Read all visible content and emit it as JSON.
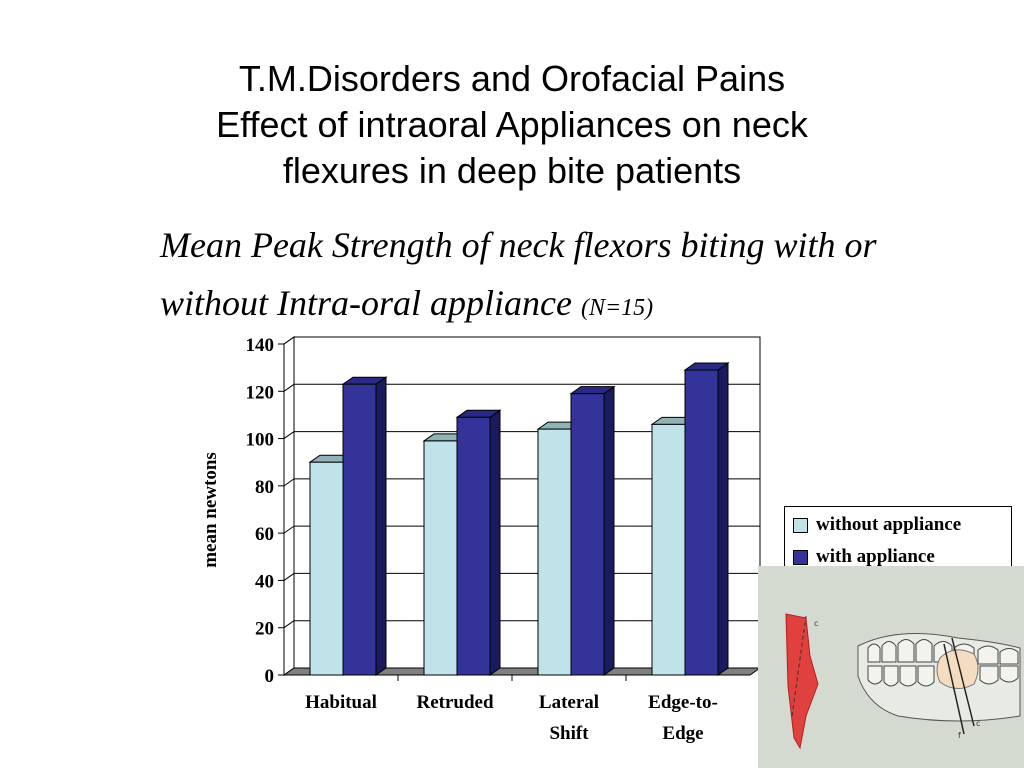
{
  "slide": {
    "title_lines": [
      "T.M.Disorders and Orofacial Pains",
      "Effect of intraoral Appliances on neck",
      "flexures in deep bite patients"
    ],
    "subtitle_main": "Mean Peak Strength of neck flexors biting with or without Intra-oral appliance",
    "subtitle_n": "(N=15)"
  },
  "chart_data": {
    "type": "bar",
    "categories": [
      "Habitual",
      "Retruded",
      "Lateral Shift",
      "Edge-to-Edge"
    ],
    "category_lines": [
      [
        "Habitual"
      ],
      [
        "Retruded"
      ],
      [
        "Lateral",
        "Shift"
      ],
      [
        "Edge-to-",
        "Edge"
      ]
    ],
    "series": [
      {
        "name": "without appliance",
        "values": [
          90,
          99,
          104,
          106
        ],
        "color": "#bfe3e8"
      },
      {
        "name": "with appliance",
        "values": [
          123,
          109,
          119,
          129
        ],
        "color": "#333399"
      }
    ],
    "ylabel": "mean newtons",
    "ylim": [
      0,
      140
    ],
    "yticks": [
      "0",
      "20",
      "40",
      "60",
      "80",
      "100",
      "120",
      "140"
    ],
    "grid": true,
    "legend_position": "right"
  },
  "legend": {
    "items": [
      {
        "label": "without appliance",
        "color": "#bfe3e8"
      },
      {
        "label": "with appliance",
        "color": "#333399"
      }
    ]
  },
  "photo": {
    "label_c_top": "c",
    "label_c_bottom": "c",
    "label_f": "f"
  }
}
